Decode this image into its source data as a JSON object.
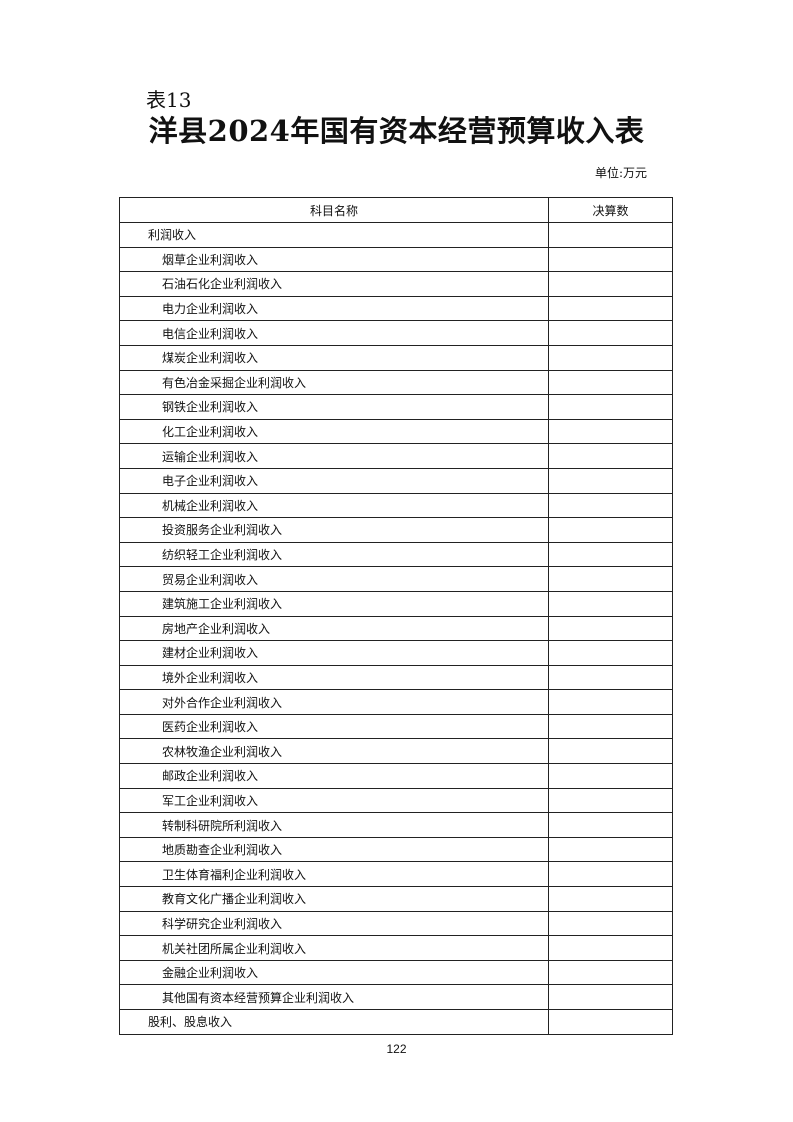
{
  "table_label": "表13",
  "title": "洋县2024年国有资本经营预算收入表",
  "unit": "单位:万元",
  "columns": [
    "科目名称",
    "决算数"
  ],
  "rows": [
    {
      "name": "利润收入",
      "level": 0,
      "value": ""
    },
    {
      "name": "烟草企业利润收入",
      "level": 1,
      "value": ""
    },
    {
      "name": "石油石化企业利润收入",
      "level": 1,
      "value": ""
    },
    {
      "name": "电力企业利润收入",
      "level": 1,
      "value": ""
    },
    {
      "name": "电信企业利润收入",
      "level": 1,
      "value": ""
    },
    {
      "name": "煤炭企业利润收入",
      "level": 1,
      "value": ""
    },
    {
      "name": "有色冶金采掘企业利润收入",
      "level": 1,
      "value": ""
    },
    {
      "name": "钢铁企业利润收入",
      "level": 1,
      "value": ""
    },
    {
      "name": "化工企业利润收入",
      "level": 1,
      "value": ""
    },
    {
      "name": "运输企业利润收入",
      "level": 1,
      "value": ""
    },
    {
      "name": "电子企业利润收入",
      "level": 1,
      "value": ""
    },
    {
      "name": "机械企业利润收入",
      "level": 1,
      "value": ""
    },
    {
      "name": "投资服务企业利润收入",
      "level": 1,
      "value": ""
    },
    {
      "name": "纺织轻工企业利润收入",
      "level": 1,
      "value": ""
    },
    {
      "name": "贸易企业利润收入",
      "level": 1,
      "value": ""
    },
    {
      "name": "建筑施工企业利润收入",
      "level": 1,
      "value": ""
    },
    {
      "name": "房地产企业利润收入",
      "level": 1,
      "value": ""
    },
    {
      "name": "建材企业利润收入",
      "level": 1,
      "value": ""
    },
    {
      "name": "境外企业利润收入",
      "level": 1,
      "value": ""
    },
    {
      "name": "对外合作企业利润收入",
      "level": 1,
      "value": ""
    },
    {
      "name": "医药企业利润收入",
      "level": 1,
      "value": ""
    },
    {
      "name": "农林牧渔企业利润收入",
      "level": 1,
      "value": ""
    },
    {
      "name": "邮政企业利润收入",
      "level": 1,
      "value": ""
    },
    {
      "name": "军工企业利润收入",
      "level": 1,
      "value": ""
    },
    {
      "name": "转制科研院所利润收入",
      "level": 1,
      "value": ""
    },
    {
      "name": "地质勘查企业利润收入",
      "level": 1,
      "value": ""
    },
    {
      "name": "卫生体育福利企业利润收入",
      "level": 1,
      "value": ""
    },
    {
      "name": "教育文化广播企业利润收入",
      "level": 1,
      "value": ""
    },
    {
      "name": "科学研究企业利润收入",
      "level": 1,
      "value": ""
    },
    {
      "name": "机关社团所属企业利润收入",
      "level": 1,
      "value": ""
    },
    {
      "name": "金融企业利润收入",
      "level": 1,
      "value": ""
    },
    {
      "name": "其他国有资本经营预算企业利润收入",
      "level": 1,
      "value": ""
    },
    {
      "name": "股利、股息收入",
      "level": 0,
      "value": ""
    }
  ],
  "page_number": "122"
}
